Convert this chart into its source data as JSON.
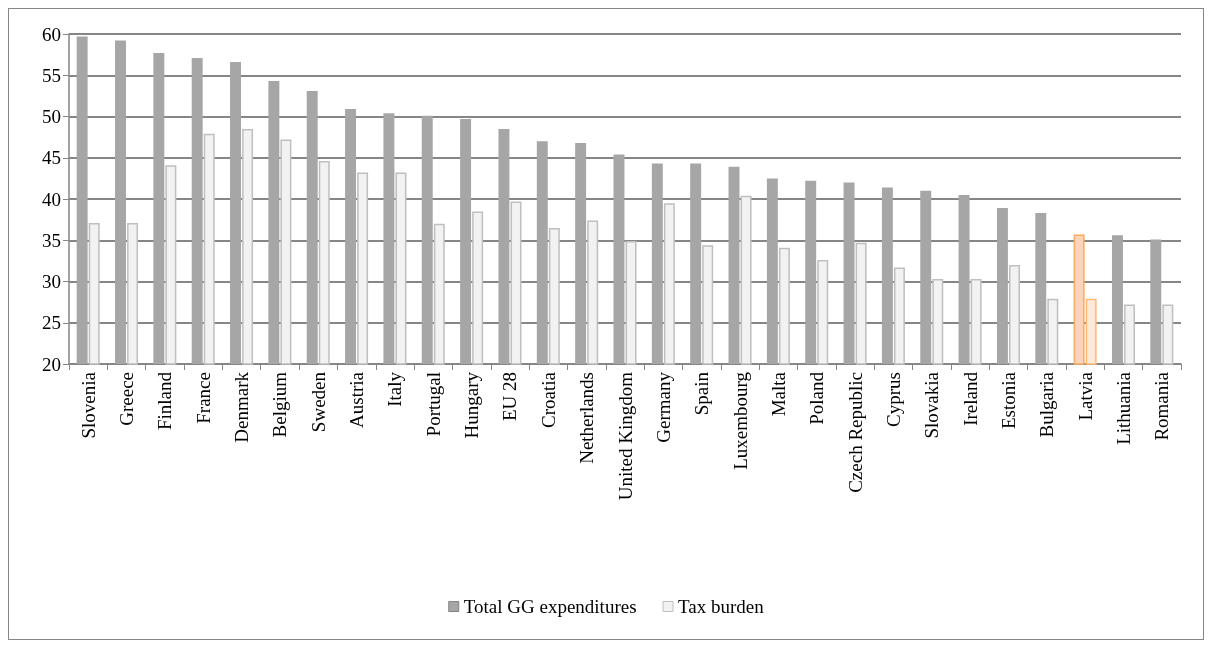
{
  "chart_data": {
    "type": "bar",
    "categories": [
      "Slovenia",
      "Greece",
      "Finland",
      "France",
      "Denmark",
      "Belgium",
      "Sweden",
      "Austria",
      "Italy",
      "Portugal",
      "Hungary",
      "EU 28",
      "Croatia",
      "Netherlands",
      "United Kingdom",
      "Germany",
      "Spain",
      "Luxembourg",
      "Malta",
      "Poland",
      "Czech Republic",
      "Cyprus",
      "Slovakia",
      "Ireland",
      "Estonia",
      "Bulgaria",
      "Latvia",
      "Lithuania",
      "Romania"
    ],
    "series": [
      {
        "name": "Total GG expenditures",
        "color": "#a6a6a6",
        "colors": [
          "#a6a6a6",
          "#a6a6a6",
          "#a6a6a6",
          "#a6a6a6",
          "#a6a6a6",
          "#a6a6a6",
          "#a6a6a6",
          "#a6a6a6",
          "#a6a6a6",
          "#a6a6a6",
          "#a6a6a6",
          "#a6a6a6",
          "#a6a6a6",
          "#a6a6a6",
          "#a6a6a6",
          "#a6a6a6",
          "#a6a6a6",
          "#a6a6a6",
          "#a6a6a6",
          "#a6a6a6",
          "#a6a6a6",
          "#a6a6a6",
          "#a6a6a6",
          "#a6a6a6",
          "#a6a6a6",
          "#a6a6a6",
          "#fbd5b5",
          "#a6a6a6",
          "#a6a6a6"
        ],
        "values": [
          59.7,
          59.2,
          57.7,
          57.1,
          56.6,
          54.3,
          53.1,
          50.9,
          50.4,
          50.1,
          49.7,
          48.5,
          47.0,
          46.8,
          45.4,
          44.3,
          44.3,
          43.9,
          42.5,
          42.2,
          42.0,
          41.4,
          41.0,
          40.5,
          38.9,
          38.3,
          35.7,
          35.6,
          35.1
        ]
      },
      {
        "name": "Tax burden",
        "color": "#f2f2f2",
        "colors": [
          "#f2f2f2",
          "#f2f2f2",
          "#f2f2f2",
          "#f2f2f2",
          "#f2f2f2",
          "#f2f2f2",
          "#f2f2f2",
          "#f2f2f2",
          "#f2f2f2",
          "#f2f2f2",
          "#f2f2f2",
          "#f2f2f2",
          "#f2f2f2",
          "#f2f2f2",
          "#f2f2f2",
          "#f2f2f2",
          "#f2f2f2",
          "#f2f2f2",
          "#f2f2f2",
          "#f2f2f2",
          "#f2f2f2",
          "#f2f2f2",
          "#f2f2f2",
          "#f2f2f2",
          "#f2f2f2",
          "#f2f2f2",
          "#fde9d9",
          "#f2f2f2",
          "#f2f2f2"
        ],
        "values": [
          37.1,
          37.1,
          44.1,
          47.9,
          48.5,
          47.2,
          44.6,
          43.2,
          43.2,
          37.0,
          38.5,
          39.7,
          36.5,
          37.4,
          34.9,
          39.5,
          34.4,
          40.4,
          34.1,
          32.6,
          34.7,
          31.7,
          30.3,
          30.3,
          32.0,
          27.9,
          27.9,
          27.2,
          27.2
        ]
      }
    ],
    "ylim": [
      20,
      60
    ],
    "yticks": [
      20,
      25,
      30,
      35,
      40,
      45,
      50,
      55,
      60
    ],
    "grid": "y",
    "legend": "bottom"
  }
}
